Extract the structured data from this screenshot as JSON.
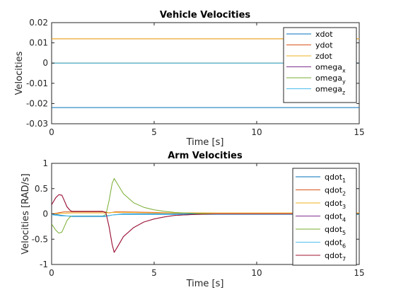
{
  "chart_data": [
    {
      "type": "line",
      "title": "Vehicle Velocities",
      "xlabel": "Time [s]",
      "ylabel": "Velocities",
      "xlim": [
        0,
        15
      ],
      "ylim": [
        -0.03,
        0.02
      ],
      "xticks": [
        0,
        5,
        10,
        15
      ],
      "xtick_labels": [
        "0",
        "5",
        "10",
        "15"
      ],
      "yticks": [
        -0.03,
        -0.02,
        -0.01,
        0,
        0.01,
        0.02
      ],
      "ytick_labels": [
        "-0.03",
        "-0.02",
        "-0.01",
        "0",
        "0.01",
        "0.02"
      ],
      "grid": false,
      "legend_position": "top-right",
      "series": [
        {
          "name": "xdot",
          "sub": "",
          "color": "#0072BD",
          "x": [
            0,
            15
          ],
          "y": [
            -0.022,
            -0.022
          ]
        },
        {
          "name": "ydot",
          "sub": "",
          "color": "#D95319",
          "x": [
            0,
            15
          ],
          "y": [
            0.012,
            0.012
          ]
        },
        {
          "name": "zdot",
          "sub": "",
          "color": "#EDB120",
          "x": [
            0,
            15
          ],
          "y": [
            0.012,
            0.012
          ]
        },
        {
          "name": "omega",
          "sub": "x",
          "color": "#7E2F8E",
          "x": [
            0,
            15
          ],
          "y": [
            0,
            0
          ]
        },
        {
          "name": "omega",
          "sub": "y",
          "color": "#77AC30",
          "x": [
            0,
            15
          ],
          "y": [
            0,
            0
          ]
        },
        {
          "name": "omega",
          "sub": "z",
          "color": "#4DBEEE",
          "x": [
            0,
            15
          ],
          "y": [
            0,
            0
          ]
        }
      ]
    },
    {
      "type": "line",
      "title": "Arm Velocities",
      "xlabel": "Time [s]",
      "ylabel": "Velocities [RAD/s]",
      "xlim": [
        0,
        15
      ],
      "ylim": [
        -1,
        1
      ],
      "xticks": [
        0,
        5,
        10,
        15
      ],
      "xtick_labels": [
        "0",
        "5",
        "10",
        "15"
      ],
      "yticks": [
        -1,
        -0.5,
        0,
        0.5,
        1
      ],
      "ytick_labels": [
        "-1",
        "-0.5",
        "0",
        "0.5",
        "1"
      ],
      "grid": false,
      "legend_position": "top-right",
      "series": [
        {
          "name": "qdot",
          "sub": "1",
          "color": "#0072BD",
          "x": [
            0,
            0.5,
            1,
            2,
            2.6,
            3,
            3.5,
            5,
            6,
            15
          ],
          "y": [
            0,
            -0.03,
            -0.05,
            -0.05,
            -0.05,
            -0.02,
            0,
            0,
            0,
            0
          ]
        },
        {
          "name": "qdot",
          "sub": "2",
          "color": "#D95319",
          "x": [
            0,
            0.3,
            0.6,
            1,
            2,
            2.6,
            2.8,
            3.1,
            3.5,
            5,
            6,
            15
          ],
          "y": [
            0,
            0.02,
            0.04,
            0.04,
            0.04,
            0.04,
            0.02,
            0.04,
            0.04,
            0.03,
            0.02,
            0.02
          ]
        },
        {
          "name": "qdot",
          "sub": "3",
          "color": "#EDB120",
          "x": [
            0,
            0.5,
            1,
            2,
            2.6,
            3,
            3.5,
            5,
            6,
            15
          ],
          "y": [
            0,
            0.01,
            0.02,
            0.02,
            0.02,
            0.03,
            0.03,
            0.02,
            0.02,
            0.02
          ]
        },
        {
          "name": "qdot",
          "sub": "4",
          "color": "#7E2F8E",
          "x": [
            0,
            0.1,
            0.2,
            0.35,
            0.5,
            0.6,
            0.75,
            0.9,
            1,
            1.3,
            2,
            2.5,
            2.65,
            2.8,
            2.95,
            3.05,
            3.2,
            3.5,
            4,
            4.5,
            5,
            5.5,
            6,
            7,
            8,
            15
          ],
          "y": [
            0.18,
            0.25,
            0.32,
            0.38,
            0.37,
            0.28,
            0.14,
            0.07,
            0.05,
            0.05,
            0.05,
            0.05,
            0.02,
            -0.25,
            -0.6,
            -0.76,
            -0.66,
            -0.45,
            -0.27,
            -0.16,
            -0.1,
            -0.06,
            -0.03,
            -0.01,
            0,
            0
          ]
        },
        {
          "name": "qdot",
          "sub": "5",
          "color": "#77AC30",
          "x": [
            0,
            0.1,
            0.2,
            0.35,
            0.5,
            0.6,
            0.75,
            0.9,
            1,
            1.3,
            2,
            2.5,
            2.65,
            2.8,
            2.95,
            3.05,
            3.2,
            3.5,
            4,
            4.5,
            5,
            5.5,
            6,
            7,
            8,
            15
          ],
          "y": [
            -0.2,
            -0.26,
            -0.32,
            -0.38,
            -0.36,
            -0.27,
            -0.13,
            -0.06,
            -0.04,
            -0.04,
            -0.04,
            -0.04,
            -0.01,
            0.26,
            0.6,
            0.7,
            0.6,
            0.4,
            0.22,
            0.13,
            0.08,
            0.05,
            0.03,
            0.01,
            0,
            0
          ]
        },
        {
          "name": "qdot",
          "sub": "6",
          "color": "#4DBEEE",
          "x": [
            0,
            0.5,
            1,
            2,
            2.6,
            3,
            3.5,
            5,
            6,
            15
          ],
          "y": [
            -0.02,
            -0.04,
            -0.04,
            -0.04,
            -0.04,
            -0.02,
            -0.01,
            -0.01,
            -0.01,
            -0.01
          ]
        },
        {
          "name": "qdot",
          "sub": "7",
          "color": "#A2142F",
          "x": [
            0,
            0.1,
            0.2,
            0.35,
            0.5,
            0.6,
            0.75,
            0.9,
            1,
            1.3,
            2,
            2.5,
            2.65,
            2.8,
            2.95,
            3.05,
            3.2,
            3.5,
            4,
            4.5,
            5,
            5.5,
            6,
            7,
            8,
            15
          ],
          "y": [
            0.18,
            0.25,
            0.32,
            0.38,
            0.37,
            0.28,
            0.14,
            0.07,
            0.05,
            0.05,
            0.05,
            0.05,
            0.02,
            -0.25,
            -0.6,
            -0.76,
            -0.66,
            -0.45,
            -0.27,
            -0.16,
            -0.1,
            -0.06,
            -0.03,
            -0.01,
            0,
            0
          ]
        }
      ]
    }
  ]
}
